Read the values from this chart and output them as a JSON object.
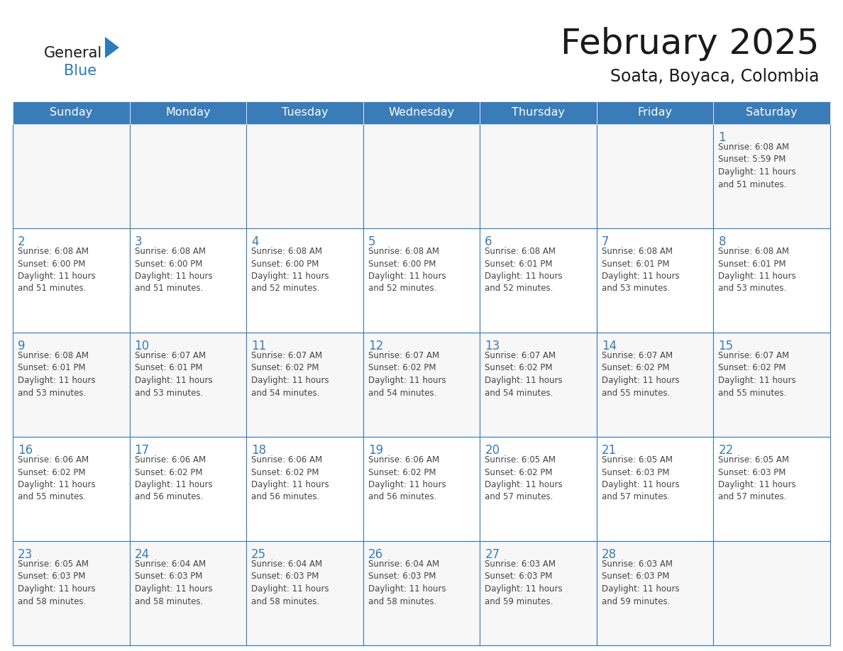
{
  "title": "February 2025",
  "subtitle": "Soata, Boyaca, Colombia",
  "header_color": "#3a7cb8",
  "header_text_color": "#ffffff",
  "border_color": "#3a7cb8",
  "day_number_color": "#3a7cb8",
  "text_color": "#444444",
  "days_of_week": [
    "Sunday",
    "Monday",
    "Tuesday",
    "Wednesday",
    "Thursday",
    "Friday",
    "Saturday"
  ],
  "weeks": [
    [
      {
        "day": null,
        "info": null
      },
      {
        "day": null,
        "info": null
      },
      {
        "day": null,
        "info": null
      },
      {
        "day": null,
        "info": null
      },
      {
        "day": null,
        "info": null
      },
      {
        "day": null,
        "info": null
      },
      {
        "day": 1,
        "info": "Sunrise: 6:08 AM\nSunset: 5:59 PM\nDaylight: 11 hours\nand 51 minutes."
      }
    ],
    [
      {
        "day": 2,
        "info": "Sunrise: 6:08 AM\nSunset: 6:00 PM\nDaylight: 11 hours\nand 51 minutes."
      },
      {
        "day": 3,
        "info": "Sunrise: 6:08 AM\nSunset: 6:00 PM\nDaylight: 11 hours\nand 51 minutes."
      },
      {
        "day": 4,
        "info": "Sunrise: 6:08 AM\nSunset: 6:00 PM\nDaylight: 11 hours\nand 52 minutes."
      },
      {
        "day": 5,
        "info": "Sunrise: 6:08 AM\nSunset: 6:00 PM\nDaylight: 11 hours\nand 52 minutes."
      },
      {
        "day": 6,
        "info": "Sunrise: 6:08 AM\nSunset: 6:01 PM\nDaylight: 11 hours\nand 52 minutes."
      },
      {
        "day": 7,
        "info": "Sunrise: 6:08 AM\nSunset: 6:01 PM\nDaylight: 11 hours\nand 53 minutes."
      },
      {
        "day": 8,
        "info": "Sunrise: 6:08 AM\nSunset: 6:01 PM\nDaylight: 11 hours\nand 53 minutes."
      }
    ],
    [
      {
        "day": 9,
        "info": "Sunrise: 6:08 AM\nSunset: 6:01 PM\nDaylight: 11 hours\nand 53 minutes."
      },
      {
        "day": 10,
        "info": "Sunrise: 6:07 AM\nSunset: 6:01 PM\nDaylight: 11 hours\nand 53 minutes."
      },
      {
        "day": 11,
        "info": "Sunrise: 6:07 AM\nSunset: 6:02 PM\nDaylight: 11 hours\nand 54 minutes."
      },
      {
        "day": 12,
        "info": "Sunrise: 6:07 AM\nSunset: 6:02 PM\nDaylight: 11 hours\nand 54 minutes."
      },
      {
        "day": 13,
        "info": "Sunrise: 6:07 AM\nSunset: 6:02 PM\nDaylight: 11 hours\nand 54 minutes."
      },
      {
        "day": 14,
        "info": "Sunrise: 6:07 AM\nSunset: 6:02 PM\nDaylight: 11 hours\nand 55 minutes."
      },
      {
        "day": 15,
        "info": "Sunrise: 6:07 AM\nSunset: 6:02 PM\nDaylight: 11 hours\nand 55 minutes."
      }
    ],
    [
      {
        "day": 16,
        "info": "Sunrise: 6:06 AM\nSunset: 6:02 PM\nDaylight: 11 hours\nand 55 minutes."
      },
      {
        "day": 17,
        "info": "Sunrise: 6:06 AM\nSunset: 6:02 PM\nDaylight: 11 hours\nand 56 minutes."
      },
      {
        "day": 18,
        "info": "Sunrise: 6:06 AM\nSunset: 6:02 PM\nDaylight: 11 hours\nand 56 minutes."
      },
      {
        "day": 19,
        "info": "Sunrise: 6:06 AM\nSunset: 6:02 PM\nDaylight: 11 hours\nand 56 minutes."
      },
      {
        "day": 20,
        "info": "Sunrise: 6:05 AM\nSunset: 6:02 PM\nDaylight: 11 hours\nand 57 minutes."
      },
      {
        "day": 21,
        "info": "Sunrise: 6:05 AM\nSunset: 6:03 PM\nDaylight: 11 hours\nand 57 minutes."
      },
      {
        "day": 22,
        "info": "Sunrise: 6:05 AM\nSunset: 6:03 PM\nDaylight: 11 hours\nand 57 minutes."
      }
    ],
    [
      {
        "day": 23,
        "info": "Sunrise: 6:05 AM\nSunset: 6:03 PM\nDaylight: 11 hours\nand 58 minutes."
      },
      {
        "day": 24,
        "info": "Sunrise: 6:04 AM\nSunset: 6:03 PM\nDaylight: 11 hours\nand 58 minutes."
      },
      {
        "day": 25,
        "info": "Sunrise: 6:04 AM\nSunset: 6:03 PM\nDaylight: 11 hours\nand 58 minutes."
      },
      {
        "day": 26,
        "info": "Sunrise: 6:04 AM\nSunset: 6:03 PM\nDaylight: 11 hours\nand 58 minutes."
      },
      {
        "day": 27,
        "info": "Sunrise: 6:03 AM\nSunset: 6:03 PM\nDaylight: 11 hours\nand 59 minutes."
      },
      {
        "day": 28,
        "info": "Sunrise: 6:03 AM\nSunset: 6:03 PM\nDaylight: 11 hours\nand 59 minutes."
      },
      {
        "day": null,
        "info": null
      }
    ]
  ],
  "logo_general_color": "#1a1a1a",
  "logo_blue_color": "#2a7abf",
  "logo_triangle_color": "#2a7abf"
}
